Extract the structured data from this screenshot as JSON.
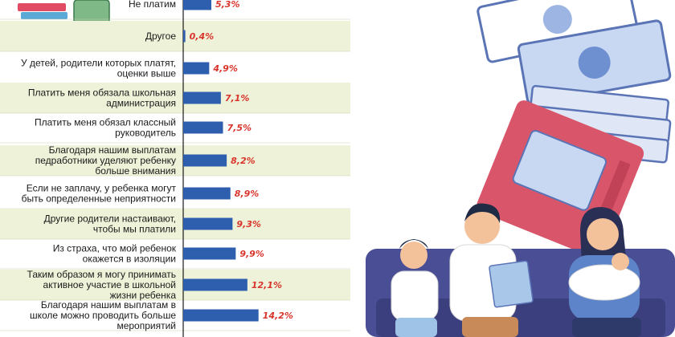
{
  "chart_data": {
    "type": "bar",
    "orientation": "horizontal",
    "categories": [
      [
        "Не платим"
      ],
      [
        "Другое"
      ],
      [
        "У детей, родители которых платят,",
        "оценки выше"
      ],
      [
        "Платить меня обязала школьная",
        "администрация"
      ],
      [
        "Платить меня обязал классный",
        "руководитель"
      ],
      [
        "Благодаря нашим выплатам",
        "педработники уделяют ребенку",
        "больше внимания"
      ],
      [
        "Если не заплачу, у ребенка могут",
        "быть определенные неприятности"
      ],
      [
        "Другие родители настаивают,",
        "чтобы мы платили"
      ],
      [
        "Из страха, что мой ребенок",
        "окажется в изоляции"
      ],
      [
        "Таким образом я могу принимать",
        "активное участие в школьной",
        "жизни ребенка"
      ],
      [
        "Благодаря нашим выплатам в",
        "школе можно проводить больше",
        "мероприятий"
      ]
    ],
    "values": [
      5.3,
      0.4,
      4.9,
      7.1,
      7.5,
      8.2,
      8.9,
      9.3,
      9.9,
      12.1,
      14.2
    ],
    "value_labels": [
      "5,3%",
      "0,4%",
      "4,9%",
      "7,1%",
      "7,5%",
      "8,2%",
      "8,9%",
      "9,3%",
      "9,9%",
      "12,1%",
      "14,2%"
    ],
    "colors": {
      "bar": "#2e5fae",
      "value_text": "#d9342b",
      "row_shade": "#eef2d8",
      "axis": "#1a1a1a"
    }
  }
}
